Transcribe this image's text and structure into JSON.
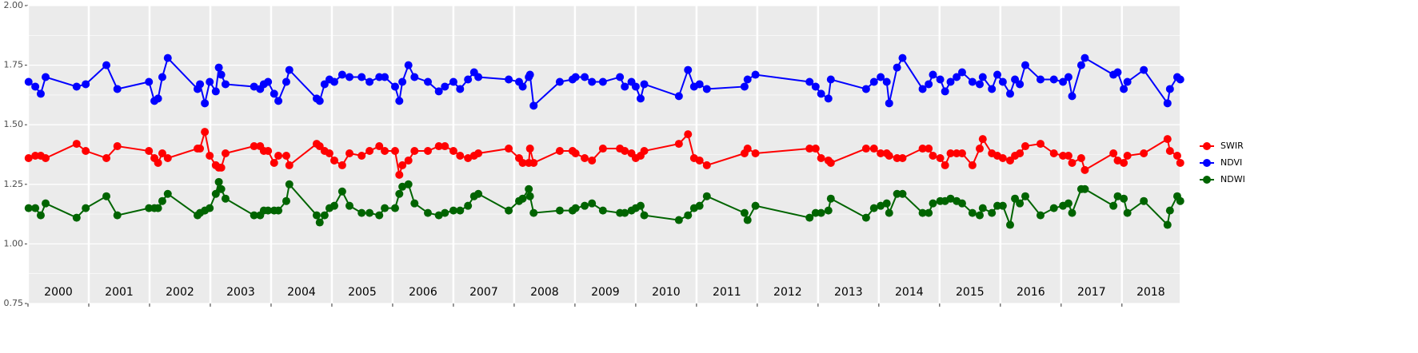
{
  "chart_data": {
    "type": "line",
    "x": [
      2000.01,
      2000.12,
      2000.21,
      2000.29,
      2000.8,
      2000.95,
      2001.29,
      2001.47,
      2001.99,
      2002.08,
      2002.14,
      2002.21,
      2002.3,
      2002.79,
      2002.83,
      2002.91,
      2002.99,
      2003.09,
      2003.14,
      2003.18,
      2003.25,
      2003.72,
      2003.82,
      2003.88,
      2003.95,
      2004.05,
      2004.12,
      2004.25,
      2004.3,
      2004.75,
      2004.8,
      2004.88,
      2004.96,
      2005.04,
      2005.17,
      2005.29,
      2005.49,
      2005.62,
      2005.78,
      2005.87,
      2006.04,
      2006.11,
      2006.16,
      2006.26,
      2006.36,
      2006.58,
      2006.76,
      2006.86,
      2007.0,
      2007.11,
      2007.24,
      2007.34,
      2007.41,
      2007.91,
      2008.08,
      2008.14,
      2008.24,
      2008.26,
      2008.32,
      2008.75,
      2008.96,
      2009.01,
      2009.16,
      2009.28,
      2009.46,
      2009.74,
      2009.82,
      2009.93,
      2010.0,
      2010.08,
      2010.14,
      2010.71,
      2010.86,
      2010.96,
      2011.05,
      2011.17,
      2011.79,
      2011.84,
      2011.97,
      2012.86,
      2012.96,
      2013.05,
      2013.17,
      2013.21,
      2013.79,
      2013.92,
      2014.03,
      2014.13,
      2014.17,
      2014.3,
      2014.39,
      2014.72,
      2014.82,
      2014.89,
      2015.01,
      2015.09,
      2015.18,
      2015.28,
      2015.37,
      2015.54,
      2015.66,
      2015.71,
      2015.86,
      2015.95,
      2016.04,
      2016.16,
      2016.24,
      2016.32,
      2016.41,
      2016.66,
      2016.88,
      2017.03,
      2017.12,
      2017.18,
      2017.33,
      2017.39,
      2017.86,
      2017.93,
      2018.03,
      2018.09,
      2018.36,
      2018.75,
      2018.79,
      2018.91,
      2018.96
    ],
    "series": [
      {
        "name": "SWIR",
        "color": "#ff0000",
        "values": [
          1.36,
          1.37,
          1.37,
          1.36,
          1.42,
          1.39,
          1.36,
          1.41,
          1.39,
          1.36,
          1.34,
          1.38,
          1.36,
          1.4,
          1.4,
          1.47,
          1.37,
          1.33,
          1.32,
          1.32,
          1.38,
          1.41,
          1.41,
          1.39,
          1.39,
          1.34,
          1.37,
          1.37,
          1.33,
          1.42,
          1.41,
          1.39,
          1.38,
          1.35,
          1.33,
          1.38,
          1.37,
          1.39,
          1.41,
          1.39,
          1.39,
          1.29,
          1.33,
          1.35,
          1.39,
          1.39,
          1.41,
          1.41,
          1.39,
          1.37,
          1.36,
          1.37,
          1.38,
          1.4,
          1.36,
          1.34,
          1.34,
          1.4,
          1.34,
          1.39,
          1.39,
          1.38,
          1.36,
          1.35,
          1.4,
          1.4,
          1.39,
          1.38,
          1.36,
          1.37,
          1.39,
          1.42,
          1.46,
          1.36,
          1.35,
          1.33,
          1.38,
          1.4,
          1.38,
          1.4,
          1.4,
          1.36,
          1.35,
          1.34,
          1.4,
          1.4,
          1.38,
          1.38,
          1.37,
          1.36,
          1.36,
          1.4,
          1.4,
          1.37,
          1.36,
          1.33,
          1.38,
          1.38,
          1.38,
          1.33,
          1.4,
          1.44,
          1.38,
          1.37,
          1.36,
          1.35,
          1.37,
          1.38,
          1.41,
          1.42,
          1.38,
          1.37,
          1.37,
          1.34,
          1.36,
          1.31,
          1.38,
          1.35,
          1.34,
          1.37,
          1.38,
          1.44,
          1.39,
          1.37,
          1.34
        ]
      },
      {
        "name": "NDVI",
        "color": "#0000ff",
        "values": [
          1.68,
          1.66,
          1.63,
          1.7,
          1.66,
          1.67,
          1.75,
          1.65,
          1.68,
          1.6,
          1.61,
          1.7,
          1.78,
          1.65,
          1.67,
          1.59,
          1.68,
          1.64,
          1.74,
          1.71,
          1.67,
          1.66,
          1.65,
          1.67,
          1.68,
          1.63,
          1.6,
          1.68,
          1.73,
          1.61,
          1.6,
          1.67,
          1.69,
          1.68,
          1.71,
          1.7,
          1.7,
          1.68,
          1.7,
          1.7,
          1.66,
          1.6,
          1.68,
          1.75,
          1.7,
          1.68,
          1.64,
          1.66,
          1.68,
          1.65,
          1.69,
          1.72,
          1.7,
          1.69,
          1.68,
          1.66,
          1.7,
          1.71,
          1.58,
          1.68,
          1.69,
          1.7,
          1.7,
          1.68,
          1.68,
          1.7,
          1.66,
          1.68,
          1.66,
          1.61,
          1.67,
          1.62,
          1.73,
          1.66,
          1.67,
          1.65,
          1.66,
          1.69,
          1.71,
          1.68,
          1.66,
          1.63,
          1.61,
          1.69,
          1.65,
          1.68,
          1.7,
          1.68,
          1.59,
          1.74,
          1.78,
          1.65,
          1.67,
          1.71,
          1.69,
          1.64,
          1.68,
          1.7,
          1.72,
          1.68,
          1.67,
          1.7,
          1.65,
          1.71,
          1.68,
          1.63,
          1.69,
          1.67,
          1.75,
          1.69,
          1.69,
          1.68,
          1.7,
          1.62,
          1.75,
          1.78,
          1.71,
          1.72,
          1.65,
          1.68,
          1.73,
          1.59,
          1.65,
          1.7,
          1.69
        ]
      },
      {
        "name": "NDWI",
        "color": "#006400",
        "values": [
          1.15,
          1.15,
          1.12,
          1.17,
          1.11,
          1.15,
          1.2,
          1.12,
          1.15,
          1.15,
          1.15,
          1.18,
          1.21,
          1.12,
          1.13,
          1.14,
          1.15,
          1.21,
          1.26,
          1.23,
          1.19,
          1.12,
          1.12,
          1.14,
          1.14,
          1.14,
          1.14,
          1.18,
          1.25,
          1.12,
          1.09,
          1.12,
          1.15,
          1.16,
          1.22,
          1.16,
          1.13,
          1.13,
          1.12,
          1.15,
          1.15,
          1.21,
          1.24,
          1.25,
          1.17,
          1.13,
          1.12,
          1.13,
          1.14,
          1.14,
          1.16,
          1.2,
          1.21,
          1.14,
          1.18,
          1.19,
          1.23,
          1.2,
          1.13,
          1.14,
          1.14,
          1.15,
          1.16,
          1.17,
          1.14,
          1.13,
          1.13,
          1.14,
          1.15,
          1.16,
          1.12,
          1.1,
          1.12,
          1.15,
          1.16,
          1.2,
          1.13,
          1.1,
          1.16,
          1.11,
          1.13,
          1.13,
          1.14,
          1.19,
          1.11,
          1.15,
          1.16,
          1.17,
          1.13,
          1.21,
          1.21,
          1.13,
          1.13,
          1.17,
          1.18,
          1.18,
          1.19,
          1.18,
          1.17,
          1.13,
          1.12,
          1.15,
          1.13,
          1.16,
          1.16,
          1.08,
          1.19,
          1.17,
          1.2,
          1.12,
          1.15,
          1.16,
          1.17,
          1.13,
          1.23,
          1.23,
          1.16,
          1.2,
          1.19,
          1.13,
          1.18,
          1.08,
          1.14,
          1.2,
          1.18
        ]
      }
    ],
    "xlim": [
      2000,
      2018.95
    ],
    "xticks": [
      2000,
      2001,
      2002,
      2003,
      2004,
      2005,
      2006,
      2007,
      2008,
      2009,
      2010,
      2011,
      2012,
      2013,
      2014,
      2015,
      2016,
      2017,
      2018
    ],
    "ylim": [
      0.75,
      2.0
    ],
    "yticks": [
      0.75,
      {
        "value": 1.0,
        "label": "1.00"
      },
      1.25,
      {
        "value": 1.5,
        "label": "1.50"
      },
      1.75,
      {
        "value": 2.0,
        "label": "2.00"
      }
    ],
    "grid": true,
    "legend": "right"
  }
}
